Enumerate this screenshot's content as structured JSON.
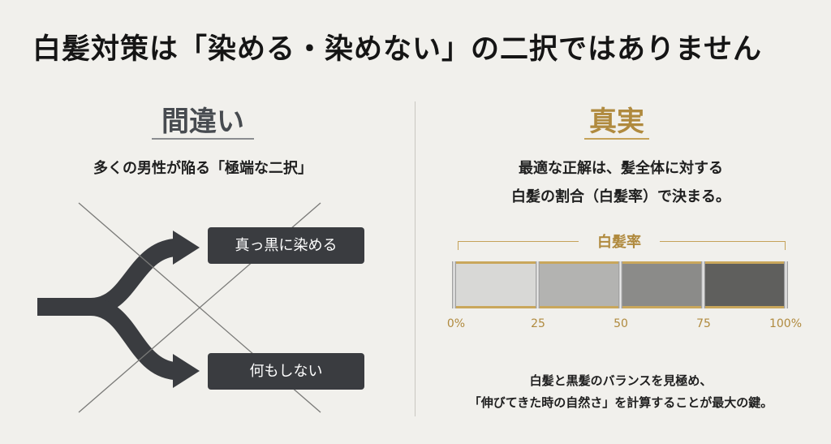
{
  "title": "白髪対策は「染める・染めない」の二択ではありません",
  "wrong": {
    "heading": "間違い",
    "subtitle": "多くの男性が陥る「極端な二択」",
    "option_top": "真っ黒に染める",
    "option_bottom": "何もしない"
  },
  "truth": {
    "heading": "真実",
    "text_line1": "最適な正解は、髪全体に対する",
    "text_line2": "白髪の割合（白髪率）で決まる。",
    "scale_label": "白髪率",
    "ticks": [
      "0%",
      "25",
      "50",
      "75",
      "100%"
    ],
    "segment_colors": [
      "#d8d8d6",
      "#b3b3b1",
      "#8b8b89",
      "#5f5f5d"
    ],
    "bottom_line1": "白髪と黒髪のバランスを見極め、",
    "bottom_line2": "「伸びてきた時の自然さ」を計算することが最大の鍵。"
  },
  "colors": {
    "background": "#f1f0ec",
    "dark": "#3a3c40",
    "gold": "#b08a3e"
  }
}
